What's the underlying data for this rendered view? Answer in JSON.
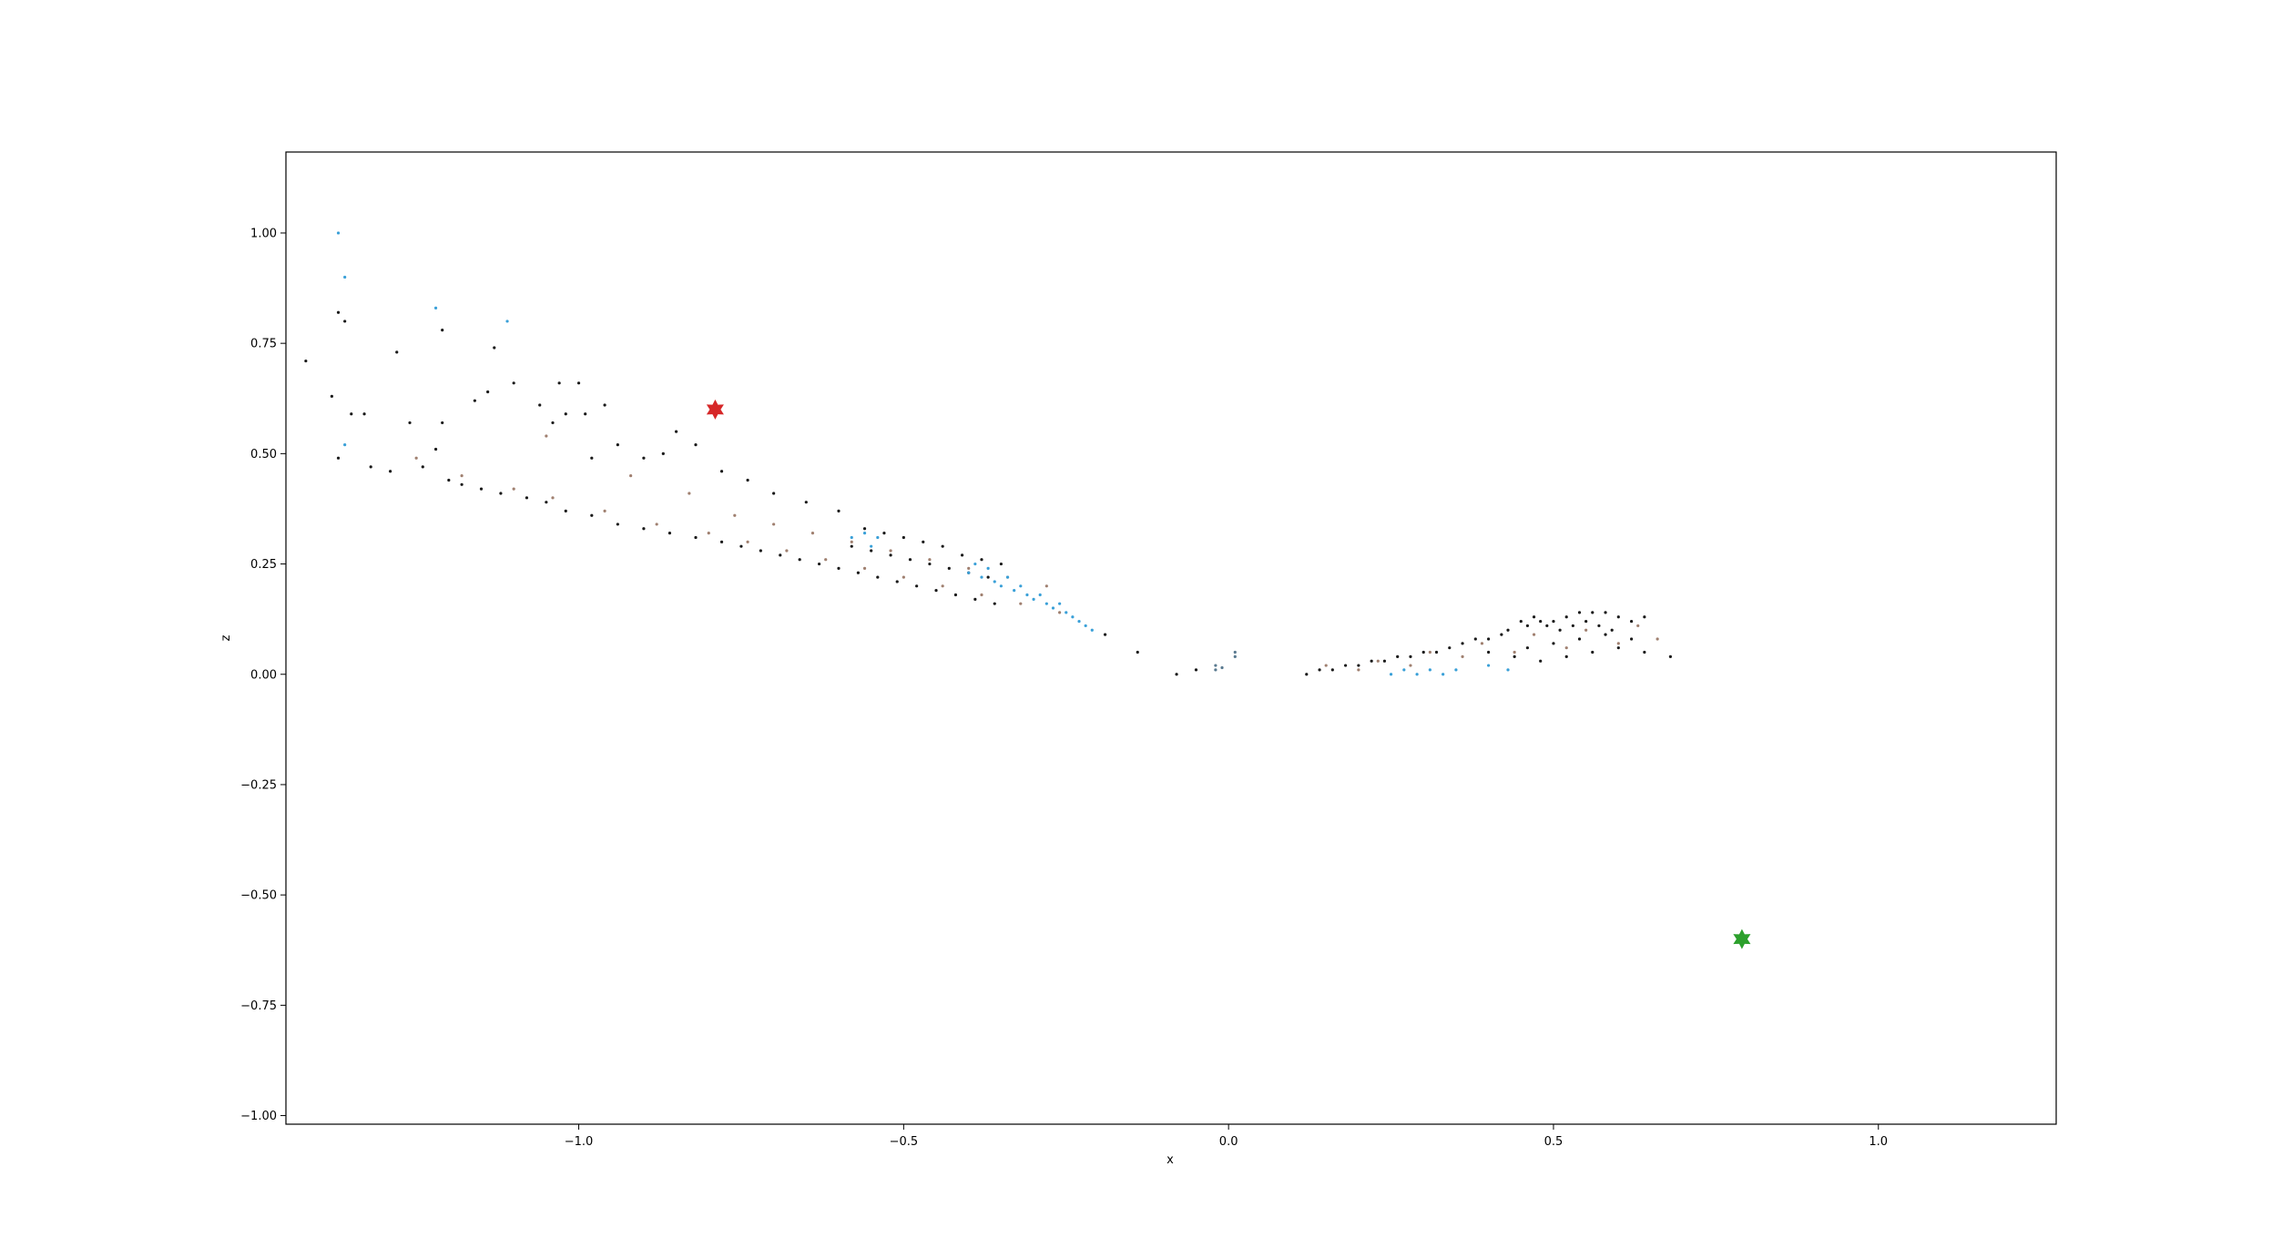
{
  "chart_data": {
    "type": "scatter",
    "title": "",
    "xlabel": "x",
    "ylabel": "z",
    "xlim": [
      -1.4506,
      1.2736
    ],
    "ylim": [
      -1.0195,
      1.1835
    ],
    "xticks": [
      -1.0,
      -0.5,
      0.0,
      0.5,
      1.0
    ],
    "xtick_labels": [
      "−1.0",
      "−0.5",
      "0.0",
      "0.5",
      "1.0"
    ],
    "yticks": [
      -1.0,
      -0.75,
      -0.5,
      -0.25,
      0.0,
      0.25,
      0.5,
      0.75,
      1.0
    ],
    "ytick_labels": [
      "−1.00",
      "−0.75",
      "−0.50",
      "−0.25",
      "0.00",
      "0.25",
      "0.50",
      "0.75",
      "1.00"
    ],
    "grid": false,
    "legend": "none",
    "series": [
      {
        "color": "#1a1a1a",
        "marker": "dot",
        "points": [
          [
            -1.42,
            0.71
          ],
          [
            -1.37,
            0.82
          ],
          [
            -1.36,
            0.8
          ],
          [
            -1.28,
            0.73
          ],
          [
            -1.38,
            0.63
          ],
          [
            -1.35,
            0.59
          ],
          [
            -1.33,
            0.59
          ],
          [
            -1.26,
            0.57
          ],
          [
            -1.21,
            0.78
          ],
          [
            -1.21,
            0.57
          ],
          [
            -1.16,
            0.62
          ],
          [
            -1.14,
            0.64
          ],
          [
            -1.13,
            0.74
          ],
          [
            -1.1,
            0.66
          ],
          [
            -1.03,
            0.66
          ],
          [
            -1.0,
            0.66
          ],
          [
            -1.06,
            0.61
          ],
          [
            -1.04,
            0.57
          ],
          [
            -1.02,
            0.59
          ],
          [
            -0.99,
            0.59
          ],
          [
            -0.96,
            0.61
          ],
          [
            -0.98,
            0.49
          ],
          [
            -0.94,
            0.52
          ],
          [
            -0.9,
            0.49
          ],
          [
            -0.87,
            0.5
          ],
          [
            -0.85,
            0.55
          ],
          [
            -0.82,
            0.52
          ],
          [
            -0.78,
            0.46
          ],
          [
            -0.74,
            0.44
          ],
          [
            -0.7,
            0.41
          ],
          [
            -0.65,
            0.39
          ],
          [
            -0.6,
            0.37
          ],
          [
            -1.37,
            0.49
          ],
          [
            -1.32,
            0.47
          ],
          [
            -1.29,
            0.46
          ],
          [
            -1.22,
            0.51
          ],
          [
            -1.24,
            0.47
          ],
          [
            -1.2,
            0.44
          ],
          [
            -1.18,
            0.43
          ],
          [
            -1.15,
            0.42
          ],
          [
            -1.12,
            0.41
          ],
          [
            -1.08,
            0.4
          ],
          [
            -1.05,
            0.39
          ],
          [
            -1.02,
            0.37
          ],
          [
            -0.98,
            0.36
          ],
          [
            -0.94,
            0.34
          ],
          [
            -0.9,
            0.33
          ],
          [
            -0.86,
            0.32
          ],
          [
            -0.82,
            0.31
          ],
          [
            -0.78,
            0.3
          ],
          [
            -0.75,
            0.29
          ],
          [
            -0.72,
            0.28
          ],
          [
            -0.69,
            0.27
          ],
          [
            -0.66,
            0.26
          ],
          [
            -0.63,
            0.25
          ],
          [
            -0.6,
            0.24
          ],
          [
            -0.57,
            0.23
          ],
          [
            -0.54,
            0.22
          ],
          [
            -0.51,
            0.21
          ],
          [
            -0.48,
            0.2
          ],
          [
            -0.45,
            0.19
          ],
          [
            -0.42,
            0.18
          ],
          [
            -0.39,
            0.17
          ],
          [
            -0.36,
            0.16
          ],
          [
            -0.58,
            0.29
          ],
          [
            -0.55,
            0.28
          ],
          [
            -0.52,
            0.27
          ],
          [
            -0.49,
            0.26
          ],
          [
            -0.46,
            0.25
          ],
          [
            -0.43,
            0.24
          ],
          [
            -0.4,
            0.23
          ],
          [
            -0.37,
            0.22
          ],
          [
            -0.56,
            0.33
          ],
          [
            -0.53,
            0.32
          ],
          [
            -0.5,
            0.31
          ],
          [
            -0.47,
            0.3
          ],
          [
            -0.44,
            0.29
          ],
          [
            -0.41,
            0.27
          ],
          [
            -0.38,
            0.26
          ],
          [
            -0.35,
            0.25
          ],
          [
            -0.19,
            0.09
          ],
          [
            -0.14,
            0.05
          ],
          [
            -0.08,
            0.0
          ],
          [
            -0.05,
            0.01
          ],
          [
            0.12,
            0.0
          ],
          [
            0.16,
            0.01
          ],
          [
            0.2,
            0.02
          ],
          [
            0.24,
            0.03
          ],
          [
            0.28,
            0.04
          ],
          [
            0.32,
            0.05
          ],
          [
            0.36,
            0.07
          ],
          [
            0.4,
            0.08
          ],
          [
            0.43,
            0.1
          ],
          [
            0.46,
            0.11
          ],
          [
            0.48,
            0.12
          ],
          [
            0.5,
            0.12
          ],
          [
            0.52,
            0.13
          ],
          [
            0.54,
            0.14
          ],
          [
            0.56,
            0.14
          ],
          [
            0.58,
            0.14
          ],
          [
            0.6,
            0.13
          ],
          [
            0.62,
            0.12
          ],
          [
            0.64,
            0.13
          ],
          [
            0.45,
            0.12
          ],
          [
            0.47,
            0.13
          ],
          [
            0.49,
            0.11
          ],
          [
            0.51,
            0.1
          ],
          [
            0.53,
            0.11
          ],
          [
            0.55,
            0.12
          ],
          [
            0.57,
            0.11
          ],
          [
            0.59,
            0.1
          ],
          [
            0.42,
            0.09
          ],
          [
            0.38,
            0.08
          ],
          [
            0.34,
            0.06
          ],
          [
            0.3,
            0.05
          ],
          [
            0.26,
            0.04
          ],
          [
            0.22,
            0.03
          ],
          [
            0.18,
            0.02
          ],
          [
            0.14,
            0.01
          ],
          [
            0.4,
            0.05
          ],
          [
            0.44,
            0.04
          ],
          [
            0.48,
            0.03
          ],
          [
            0.52,
            0.04
          ],
          [
            0.56,
            0.05
          ],
          [
            0.6,
            0.06
          ],
          [
            0.64,
            0.05
          ],
          [
            0.68,
            0.04
          ],
          [
            0.62,
            0.08
          ],
          [
            0.58,
            0.09
          ],
          [
            0.54,
            0.08
          ],
          [
            0.5,
            0.07
          ],
          [
            0.46,
            0.06
          ]
        ]
      },
      {
        "color": "#a08070",
        "marker": "dot",
        "points": [
          [
            -1.25,
            0.49
          ],
          [
            -1.18,
            0.45
          ],
          [
            -1.1,
            0.42
          ],
          [
            -1.04,
            0.4
          ],
          [
            -0.96,
            0.37
          ],
          [
            -0.88,
            0.34
          ],
          [
            -0.8,
            0.32
          ],
          [
            -0.74,
            0.3
          ],
          [
            -0.68,
            0.28
          ],
          [
            -0.62,
            0.26
          ],
          [
            -0.56,
            0.24
          ],
          [
            -0.5,
            0.22
          ],
          [
            -0.44,
            0.2
          ],
          [
            -0.38,
            0.18
          ],
          [
            -0.32,
            0.16
          ],
          [
            -0.26,
            0.14
          ],
          [
            -0.7,
            0.34
          ],
          [
            -0.64,
            0.32
          ],
          [
            -0.58,
            0.3
          ],
          [
            -0.52,
            0.28
          ],
          [
            -0.46,
            0.26
          ],
          [
            -0.4,
            0.24
          ],
          [
            -0.34,
            0.22
          ],
          [
            -0.28,
            0.2
          ],
          [
            -1.05,
            0.54
          ],
          [
            -0.92,
            0.45
          ],
          [
            -0.83,
            0.41
          ],
          [
            -0.76,
            0.36
          ],
          [
            0.15,
            0.02
          ],
          [
            0.23,
            0.03
          ],
          [
            0.31,
            0.05
          ],
          [
            0.39,
            0.07
          ],
          [
            0.47,
            0.09
          ],
          [
            0.55,
            0.1
          ],
          [
            0.63,
            0.11
          ],
          [
            0.66,
            0.08
          ],
          [
            0.36,
            0.04
          ],
          [
            0.44,
            0.05
          ],
          [
            0.52,
            0.06
          ],
          [
            0.6,
            0.07
          ],
          [
            0.28,
            0.02
          ],
          [
            0.2,
            0.01
          ]
        ]
      },
      {
        "color": "#3aa0d8",
        "marker": "dot",
        "points": [
          [
            -1.37,
            1.0
          ],
          [
            -1.36,
            0.9
          ],
          [
            -1.22,
            0.83
          ],
          [
            -1.11,
            0.8
          ],
          [
            -1.36,
            0.52
          ],
          [
            -0.58,
            0.31
          ],
          [
            -0.56,
            0.32
          ],
          [
            -0.54,
            0.31
          ],
          [
            -0.55,
            0.29
          ],
          [
            -0.4,
            0.23
          ],
          [
            -0.38,
            0.22
          ],
          [
            -0.36,
            0.21
          ],
          [
            -0.35,
            0.2
          ],
          [
            -0.34,
            0.22
          ],
          [
            -0.33,
            0.19
          ],
          [
            -0.32,
            0.2
          ],
          [
            -0.31,
            0.18
          ],
          [
            -0.3,
            0.17
          ],
          [
            -0.29,
            0.18
          ],
          [
            -0.28,
            0.16
          ],
          [
            -0.27,
            0.15
          ],
          [
            -0.26,
            0.16
          ],
          [
            -0.25,
            0.14
          ],
          [
            -0.24,
            0.13
          ],
          [
            -0.23,
            0.12
          ],
          [
            -0.22,
            0.11
          ],
          [
            -0.21,
            0.1
          ],
          [
            -0.37,
            0.24
          ],
          [
            -0.39,
            0.25
          ],
          [
            0.25,
            0.0
          ],
          [
            0.27,
            0.01
          ],
          [
            0.29,
            0.0
          ],
          [
            0.31,
            0.01
          ],
          [
            0.33,
            0.0
          ],
          [
            0.35,
            0.01
          ],
          [
            0.4,
            0.02
          ],
          [
            0.43,
            0.01
          ]
        ]
      },
      {
        "color": "#5a7a90",
        "marker": "dot",
        "points": [
          [
            0.01,
            0.05
          ],
          [
            0.01,
            0.04
          ],
          [
            -0.02,
            0.02
          ],
          [
            -0.02,
            0.01
          ],
          [
            -0.01,
            0.015
          ]
        ]
      },
      {
        "color": "#d62728",
        "marker": "triangle",
        "points": [
          [
            -0.79,
            0.6
          ]
        ]
      },
      {
        "color": "#2ca02c",
        "marker": "star",
        "points": [
          [
            0.79,
            -0.6
          ]
        ]
      }
    ]
  }
}
